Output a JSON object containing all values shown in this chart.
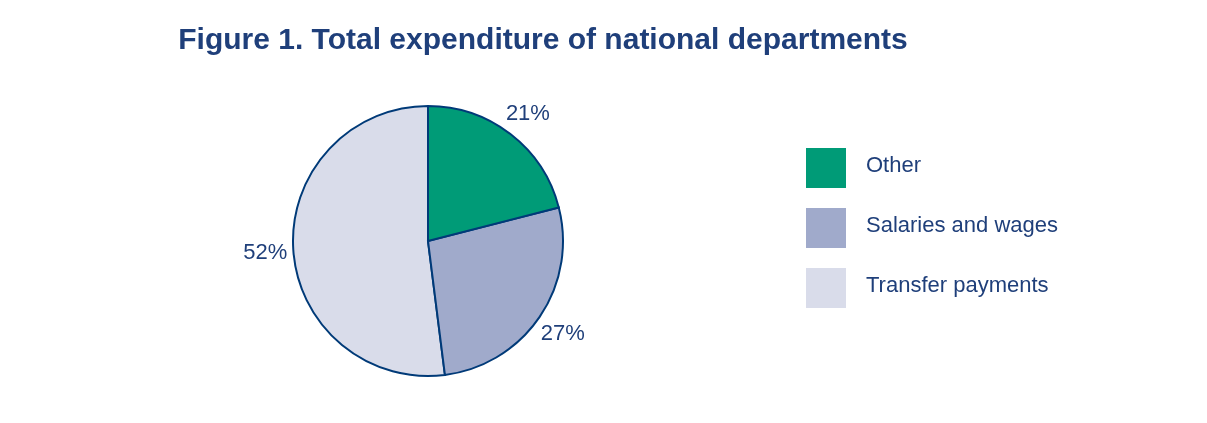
{
  "chart_data": {
    "type": "pie",
    "title": "Figure 1. Total expenditure of national departments",
    "categories": [
      "Transfer payments",
      "Salaries and wages",
      "Other"
    ],
    "values": [
      52,
      27,
      21
    ],
    "colors": [
      "#d9dcea",
      "#a0aacb",
      "#009b77"
    ],
    "value_labels": [
      "52%",
      "27%",
      "21%"
    ],
    "legend": "right"
  }
}
